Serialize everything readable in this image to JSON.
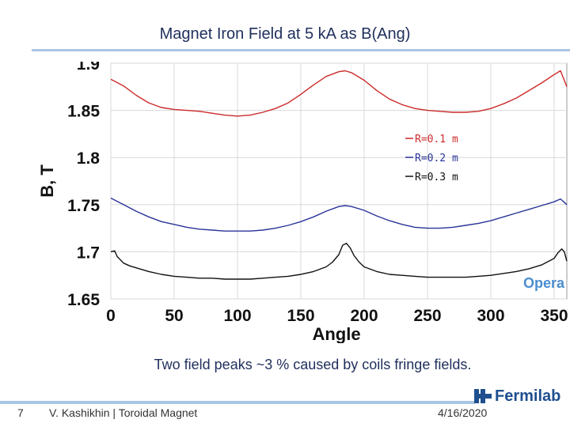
{
  "slide": {
    "title": "Magnet Iron Field at 5 kA as B(Ang)",
    "caption": "Two field peaks ~3 % caused by coils fringe fields.",
    "slide_number": "7",
    "author": "V. Kashikhin | Toroidal Magnet",
    "date": "4/16/2020",
    "logo_text": "Fermilab",
    "software_watermark": "Opera"
  },
  "colors": {
    "red_series": "#cc2a2a",
    "blue_series": "#2a3399",
    "black_series": "#111111",
    "accent": "#a9c6e6",
    "text": "#1f2f5c"
  },
  "chart_data": {
    "type": "line",
    "xlabel": "Angle",
    "ylabel": "B, T",
    "xlim": [
      0,
      360
    ],
    "ylim": [
      1.65,
      1.9
    ],
    "xticks": [
      0,
      50,
      100,
      150,
      200,
      250,
      300,
      350
    ],
    "yticks": [
      1.65,
      1.7,
      1.75,
      1.8,
      1.85,
      1.9
    ],
    "yticklabels": [
      "1.65",
      "1.7",
      "1.75",
      "1.8",
      "1.85",
      "1.9"
    ],
    "grid": true,
    "legend_position": "upper-right",
    "series": [
      {
        "name": "R=0.1 m",
        "color": "#cc2a2a",
        "x": [
          0,
          10,
          20,
          30,
          40,
          50,
          60,
          70,
          80,
          90,
          100,
          110,
          120,
          130,
          140,
          150,
          160,
          170,
          180,
          185,
          190,
          200,
          210,
          220,
          230,
          240,
          250,
          260,
          270,
          280,
          290,
          300,
          310,
          320,
          330,
          340,
          350,
          355,
          360
        ],
        "y": [
          1.883,
          1.876,
          1.866,
          1.858,
          1.853,
          1.851,
          1.85,
          1.849,
          1.847,
          1.845,
          1.844,
          1.845,
          1.848,
          1.852,
          1.858,
          1.867,
          1.877,
          1.886,
          1.891,
          1.892,
          1.89,
          1.882,
          1.871,
          1.862,
          1.856,
          1.852,
          1.85,
          1.849,
          1.848,
          1.848,
          1.849,
          1.852,
          1.857,
          1.863,
          1.871,
          1.879,
          1.888,
          1.892,
          1.875
        ]
      },
      {
        "name": "R=0.2 m",
        "color": "#2a3399",
        "x": [
          0,
          10,
          20,
          30,
          40,
          50,
          60,
          70,
          80,
          90,
          100,
          110,
          120,
          130,
          140,
          150,
          160,
          170,
          180,
          185,
          190,
          200,
          210,
          220,
          230,
          240,
          250,
          260,
          270,
          280,
          290,
          300,
          310,
          320,
          330,
          340,
          350,
          355,
          360
        ],
        "y": [
          1.757,
          1.75,
          1.743,
          1.737,
          1.732,
          1.729,
          1.726,
          1.724,
          1.723,
          1.722,
          1.722,
          1.722,
          1.723,
          1.725,
          1.728,
          1.732,
          1.737,
          1.743,
          1.748,
          1.749,
          1.748,
          1.744,
          1.738,
          1.733,
          1.729,
          1.726,
          1.725,
          1.725,
          1.726,
          1.728,
          1.73,
          1.733,
          1.737,
          1.741,
          1.745,
          1.749,
          1.753,
          1.756,
          1.75
        ]
      },
      {
        "name": "R=0.3 m",
        "color": "#111111",
        "x": [
          0,
          3,
          5,
          10,
          15,
          20,
          30,
          40,
          50,
          60,
          70,
          80,
          90,
          100,
          110,
          120,
          130,
          140,
          150,
          160,
          170,
          175,
          180,
          183,
          186,
          189,
          192,
          196,
          200,
          210,
          220,
          230,
          240,
          250,
          260,
          270,
          280,
          290,
          300,
          310,
          320,
          330,
          340,
          350,
          353,
          356,
          358,
          360
        ],
        "y": [
          1.7,
          1.701,
          1.695,
          1.688,
          1.685,
          1.683,
          1.679,
          1.676,
          1.674,
          1.673,
          1.672,
          1.672,
          1.671,
          1.671,
          1.671,
          1.672,
          1.673,
          1.674,
          1.676,
          1.679,
          1.684,
          1.689,
          1.697,
          1.707,
          1.709,
          1.704,
          1.696,
          1.689,
          1.684,
          1.679,
          1.676,
          1.675,
          1.674,
          1.673,
          1.673,
          1.673,
          1.673,
          1.674,
          1.675,
          1.677,
          1.679,
          1.682,
          1.686,
          1.693,
          1.699,
          1.703,
          1.7,
          1.69
        ]
      }
    ]
  }
}
